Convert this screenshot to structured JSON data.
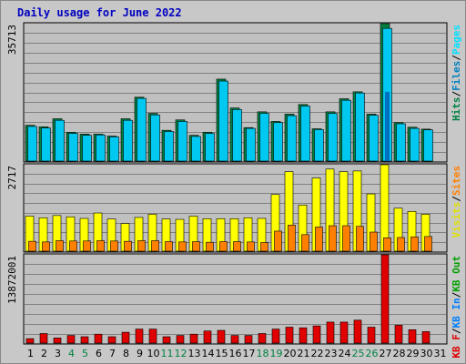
{
  "title": "Daily usage for June 2022",
  "colors": {
    "hits": "#00a000",
    "hits_dark": "#008040",
    "files": "#00c8f0",
    "pages": "#00e0ff",
    "visits": "#ffff00",
    "sites": "#ff8000",
    "kb_in": "#0080ff",
    "kb_out": "#00a000",
    "kb_f": "#e00000"
  },
  "chart_data": [
    {
      "type": "bar",
      "title": "Daily usage for June 2022",
      "panel": "hits-files-pages",
      "max_label": "35713",
      "ymax": 35713,
      "legend": [
        {
          "text": "Hits",
          "color": "#008040"
        },
        {
          "text": "/",
          "color": "#000000"
        },
        {
          "text": "Files",
          "color": "#0080c0"
        },
        {
          "text": "/",
          "color": "#000000"
        },
        {
          "text": "Pages",
          "color": "#00e0ff"
        }
      ],
      "categories": [
        "1",
        "2",
        "3",
        "4",
        "5",
        "6",
        "7",
        "8",
        "9",
        "10",
        "11",
        "12",
        "13",
        "14",
        "15",
        "16",
        "17",
        "18",
        "19",
        "20",
        "21",
        "22",
        "23",
        "24",
        "25",
        "26",
        "27",
        "28",
        "29",
        "30",
        "31"
      ],
      "series": [
        {
          "name": "Hits",
          "values": [
            9300,
            8900,
            11000,
            7500,
            7000,
            7000,
            6500,
            11000,
            16600,
            12400,
            8000,
            10700,
            6700,
            7500,
            21300,
            13800,
            8700,
            12800,
            10300,
            12200,
            14700,
            8400,
            12800,
            16200,
            18000,
            12200,
            35713,
            10000,
            8800,
            8300,
            0
          ]
        },
        {
          "name": "Files",
          "values": [
            9000,
            8600,
            10600,
            7200,
            6700,
            6800,
            6300,
            10600,
            16300,
            12000,
            7700,
            10300,
            6400,
            7200,
            20800,
            13400,
            8500,
            12400,
            10000,
            11800,
            14300,
            8200,
            12400,
            15800,
            17700,
            11900,
            34500,
            9700,
            8500,
            8100,
            0
          ]
        },
        {
          "name": "Pages",
          "values": [
            0,
            0,
            0,
            0,
            0,
            0,
            0,
            0,
            0,
            0,
            0,
            0,
            0,
            0,
            0,
            0,
            0,
            0,
            0,
            0,
            0,
            0,
            0,
            0,
            0,
            0,
            18000,
            0,
            0,
            0,
            0
          ]
        }
      ]
    },
    {
      "type": "bar",
      "panel": "visits-sites",
      "max_label": "2717",
      "ymax": 2717,
      "legend": [
        {
          "text": "Visits",
          "color": "#e0e000"
        },
        {
          "text": "/",
          "color": "#000000"
        },
        {
          "text": "Sites",
          "color": "#ff8000"
        }
      ],
      "categories": [
        "1",
        "2",
        "3",
        "4",
        "5",
        "6",
        "7",
        "8",
        "9",
        "10",
        "11",
        "12",
        "13",
        "14",
        "15",
        "16",
        "17",
        "18",
        "19",
        "20",
        "21",
        "22",
        "23",
        "24",
        "25",
        "26",
        "27",
        "28",
        "29",
        "30",
        "31"
      ],
      "series": [
        {
          "name": "Visits",
          "values": [
            1100,
            1050,
            1120,
            1080,
            1030,
            1200,
            1010,
            870,
            1060,
            1160,
            1010,
            1000,
            1100,
            1020,
            1020,
            1020,
            1050,
            1030,
            1780,
            2500,
            1450,
            2300,
            2580,
            2500,
            2520,
            1800,
            2717,
            1350,
            1250,
            1160,
            0
          ]
        },
        {
          "name": "Sites",
          "values": [
            310,
            290,
            330,
            320,
            320,
            330,
            320,
            310,
            330,
            330,
            300,
            290,
            300,
            280,
            300,
            300,
            290,
            270,
            630,
            820,
            520,
            760,
            800,
            800,
            780,
            600,
            420,
            430,
            450,
            460,
            0
          ]
        }
      ]
    },
    {
      "type": "bar",
      "panel": "kbf-kbin-kbout",
      "max_label": "13872001",
      "ymax": 13872001,
      "legend": [
        {
          "text": "KB F",
          "color": "#e00000"
        },
        {
          "text": "/",
          "color": "#000000"
        },
        {
          "text": "KB In",
          "color": "#0080ff"
        },
        {
          "text": "/",
          "color": "#000000"
        },
        {
          "text": "KB Out",
          "color": "#00a000"
        }
      ],
      "categories": [
        "1",
        "2",
        "3",
        "4",
        "5",
        "6",
        "7",
        "8",
        "9",
        "10",
        "11",
        "12",
        "13",
        "14",
        "15",
        "16",
        "17",
        "18",
        "19",
        "20",
        "21",
        "22",
        "23",
        "24",
        "25",
        "26",
        "27",
        "28",
        "29",
        "30",
        "31"
      ],
      "series": [
        {
          "name": "KB F",
          "values": [
            700000,
            1500000,
            800000,
            1200000,
            1000000,
            1400000,
            1000000,
            1700000,
            2200000,
            2200000,
            1000000,
            1200000,
            1400000,
            1900000,
            2000000,
            1200000,
            1200000,
            1500000,
            2200000,
            2500000,
            2400000,
            2700000,
            3300000,
            3300000,
            3600000,
            2500000,
            13872001,
            2800000,
            2100000,
            1800000,
            0
          ]
        }
      ]
    }
  ],
  "x_axis": {
    "labels": [
      "1",
      "2",
      "3",
      "4",
      "5",
      "6",
      "7",
      "8",
      "9",
      "10",
      "11",
      "12",
      "13",
      "14",
      "15",
      "16",
      "17",
      "18",
      "19",
      "20",
      "21",
      "22",
      "23",
      "24",
      "25",
      "26",
      "27",
      "28",
      "29",
      "30",
      "31"
    ],
    "weekend_color": "#008040",
    "weekday_color": "#000000",
    "weekend_days": [
      "4",
      "5",
      "11",
      "12",
      "18",
      "19",
      "25",
      "26"
    ]
  }
}
